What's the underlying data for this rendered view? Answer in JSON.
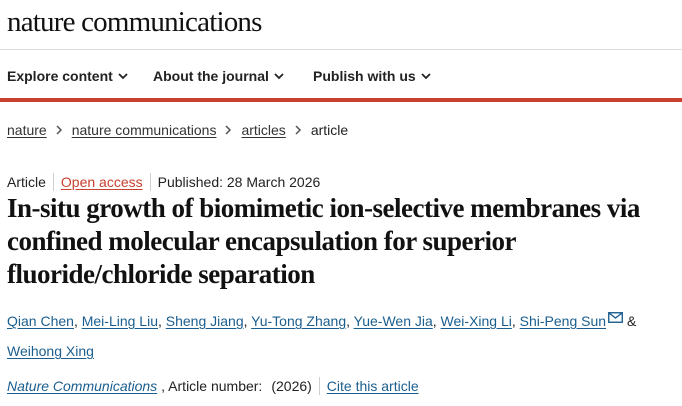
{
  "site": {
    "masthead": "nature communications"
  },
  "nav": {
    "items": [
      {
        "label": "Explore content"
      },
      {
        "label": "About the journal"
      },
      {
        "label": "Publish with us"
      }
    ]
  },
  "breadcrumb": [
    "nature",
    "nature communications",
    "articles",
    "article"
  ],
  "meta": {
    "type": "Article",
    "access": "Open access",
    "published": "Published: 28 March 2026"
  },
  "article": {
    "title": "In-situ growth of biomimetic ion-selective membranes via confined molecular encapsulation for superior fluoride/chloride separation"
  },
  "authors": {
    "list": [
      "Qian Chen",
      "Mei-Ling Liu",
      "Sheng Jiang",
      "Yu-Tong Zhang",
      "Yue-Wen Jia",
      "Wei-Xing Li",
      "Shi-Peng Sun",
      "Weihong Xing"
    ],
    "separator": ",",
    "conjunction": "&"
  },
  "citation": {
    "journal": "Nature Communications",
    "article_number_text": ", Article number:",
    "year": "(2026)",
    "cite_link": "Cite this article"
  },
  "colors": {
    "accent_red": "#c8402e",
    "link_blue": "#1a5e8f"
  },
  "icons": {
    "nav_chevron": "chevron-down-icon",
    "breadcrumb_sep": "chevron-right-icon",
    "email": "envelope-icon"
  }
}
